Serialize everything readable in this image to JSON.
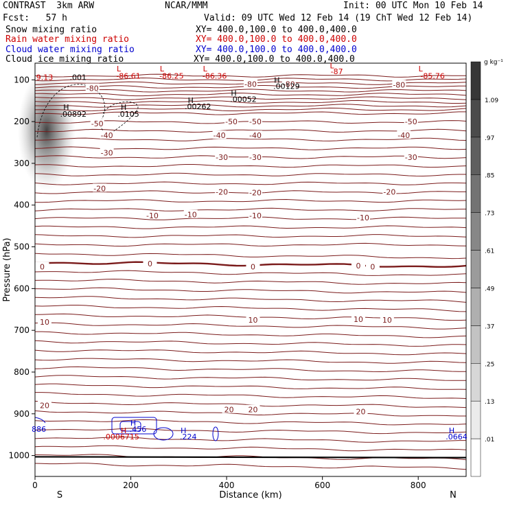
{
  "header": {
    "model": "CONTRAST  3km ARW",
    "center": "NCAR/MMM",
    "init": "Init: 00 UTC Mon 10 Feb 14",
    "fcst": "Fcst:   57 h",
    "valid": "Valid: 09 UTC Wed 12 Feb 14 (19 ChT Wed 12 Feb 14)",
    "fields": [
      {
        "label": "Snow mixing ratio",
        "xy": "XY= 400.0,100.0 to 400.0,400.0",
        "color": "#000000"
      },
      {
        "label": "Rain water mixing ratio",
        "xy": "XY= 400.0,100.0 to 400.0,400.0",
        "color": "#cc0000"
      },
      {
        "label": "Cloud water mixing ratio",
        "xy": "XY= 400.0,100.0 to 400.0,400.0",
        "color": "#0000cc"
      },
      {
        "label": "Cloud ice mixing ratio",
        "xy": "XY= 400.0,100.0 to 400.0,400.0",
        "color": "#000000"
      }
    ]
  },
  "chart_data": {
    "type": "heatmap",
    "xlabel": "Distance (km)",
    "ylabel": "Pressure (hPa)",
    "xlim": [
      0,
      900
    ],
    "ylim": [
      1050,
      60
    ],
    "x_ticks": [
      0,
      200,
      400,
      600,
      800
    ],
    "y_ticks": [
      100,
      200,
      300,
      400,
      500,
      600,
      700,
      800,
      900,
      1000
    ],
    "x_end_labels": {
      "left": "S",
      "right": "N"
    },
    "colorbar": {
      "unit": "g kg⁻¹",
      "levels": [
        ".01",
        ".13",
        ".25",
        ".37",
        ".49",
        ".61",
        ".73",
        ".85",
        ".97",
        "1.09"
      ]
    },
    "temperature_labels": [
      {
        "text": "-80",
        "x": 120,
        "p": 120
      },
      {
        "text": "-80",
        "x": 450,
        "p": 110
      },
      {
        "text": "-80",
        "x": 530,
        "p": 110
      },
      {
        "text": "-80",
        "x": 760,
        "p": 112
      },
      {
        "text": "-50",
        "x": 130,
        "p": 205
      },
      {
        "text": "-50",
        "x": 410,
        "p": 200
      },
      {
        "text": "-50",
        "x": 460,
        "p": 200
      },
      {
        "text": "-50",
        "x": 785,
        "p": 200
      },
      {
        "text": "-40",
        "x": 150,
        "p": 233
      },
      {
        "text": "-40",
        "x": 385,
        "p": 233
      },
      {
        "text": "-40",
        "x": 460,
        "p": 233
      },
      {
        "text": "-40",
        "x": 770,
        "p": 233
      },
      {
        "text": "-30",
        "x": 150,
        "p": 275
      },
      {
        "text": "-30",
        "x": 390,
        "p": 285
      },
      {
        "text": "-30",
        "x": 460,
        "p": 285
      },
      {
        "text": "-30",
        "x": 785,
        "p": 285
      },
      {
        "text": "-20",
        "x": 135,
        "p": 360
      },
      {
        "text": "-20",
        "x": 390,
        "p": 368
      },
      {
        "text": "-20",
        "x": 460,
        "p": 370
      },
      {
        "text": "-20",
        "x": 740,
        "p": 368
      },
      {
        "text": "-10",
        "x": 245,
        "p": 425
      },
      {
        "text": "-10",
        "x": 325,
        "p": 423
      },
      {
        "text": "-10",
        "x": 460,
        "p": 425
      },
      {
        "text": "-10",
        "x": 685,
        "p": 430
      },
      {
        "text": "0",
        "x": 15,
        "p": 548
      },
      {
        "text": "0",
        "x": 240,
        "p": 540
      },
      {
        "text": "0",
        "x": 455,
        "p": 548
      },
      {
        "text": "0",
        "x": 675,
        "p": 545
      },
      {
        "text": "0",
        "x": 705,
        "p": 548
      },
      {
        "text": "10",
        "x": 20,
        "p": 680
      },
      {
        "text": "10",
        "x": 455,
        "p": 675
      },
      {
        "text": "10",
        "x": 675,
        "p": 673
      },
      {
        "text": "10",
        "x": 735,
        "p": 675
      },
      {
        "text": "20",
        "x": 20,
        "p": 880
      },
      {
        "text": "20",
        "x": 405,
        "p": 890
      },
      {
        "text": "20",
        "x": 455,
        "p": 890
      },
      {
        "text": "20",
        "x": 680,
        "p": 895
      }
    ],
    "extrema_labels": [
      {
        "text": "L",
        "x": 175,
        "p": 80,
        "color": "#cc0000"
      },
      {
        "text": "L",
        "x": 265,
        "p": 80,
        "color": "#cc0000"
      },
      {
        "text": "L",
        "x": 355,
        "p": 80,
        "color": "#cc0000"
      },
      {
        "text": "L",
        "x": 620,
        "p": 72,
        "color": "#cc0000"
      },
      {
        "text": "L",
        "x": 805,
        "p": 80,
        "color": "#cc0000"
      },
      {
        "text": "-86.61",
        "x": 195,
        "p": 97,
        "color": "#cc0000"
      },
      {
        "text": "-86.25",
        "x": 285,
        "p": 97,
        "color": "#cc0000"
      },
      {
        "text": "-86.36",
        "x": 375,
        "p": 97,
        "color": "#cc0000"
      },
      {
        "text": "-87",
        "x": 630,
        "p": 86,
        "color": "#cc0000"
      },
      {
        "text": "-85.76",
        "x": 830,
        "p": 97,
        "color": "#cc0000"
      },
      {
        "text": "9.13",
        "x": 20,
        "p": 100,
        "color": "#cc0000"
      },
      {
        "text": ".001",
        "x": 90,
        "p": 100,
        "color": "#000000"
      },
      {
        "text": "H",
        "x": 65,
        "p": 172,
        "color": "#000000"
      },
      {
        "text": ".00892",
        "x": 80,
        "p": 188,
        "color": "#000000"
      },
      {
        "text": "H",
        "x": 185,
        "p": 172,
        "color": "#000000"
      },
      {
        "text": ".0105",
        "x": 195,
        "p": 188,
        "color": "#000000"
      },
      {
        "text": "H",
        "x": 325,
        "p": 155,
        "color": "#000000"
      },
      {
        "text": ".00262",
        "x": 340,
        "p": 170,
        "color": "#000000"
      },
      {
        "text": "H",
        "x": 415,
        "p": 138,
        "color": "#000000"
      },
      {
        "text": ".00052",
        "x": 435,
        "p": 153,
        "color": "#000000"
      },
      {
        "text": "H",
        "x": 505,
        "p": 107,
        "color": "#000000"
      },
      {
        "text": ".00129",
        "x": 525,
        "p": 122,
        "color": "#000000"
      },
      {
        "text": "H",
        "x": 205,
        "p": 928,
        "color": "#0000cc"
      },
      {
        "text": ".456",
        "x": 215,
        "p": 943,
        "color": "#0000cc"
      },
      {
        "text": "H",
        "x": 185,
        "p": 946,
        "color": "#cc0000"
      },
      {
        "text": ".0006715",
        "x": 180,
        "p": 961,
        "color": "#cc0000"
      },
      {
        "text": "H",
        "x": 310,
        "p": 946,
        "color": "#0000cc"
      },
      {
        "text": ".224",
        "x": 320,
        "p": 961,
        "color": "#0000cc"
      },
      {
        "text": "H",
        "x": 870,
        "p": 946,
        "color": "#0000cc"
      },
      {
        "text": ".0664",
        "x": 880,
        "p": 961,
        "color": "#0000cc"
      },
      {
        "text": "886",
        "x": 8,
        "p": 943,
        "color": "#0000cc"
      }
    ]
  }
}
